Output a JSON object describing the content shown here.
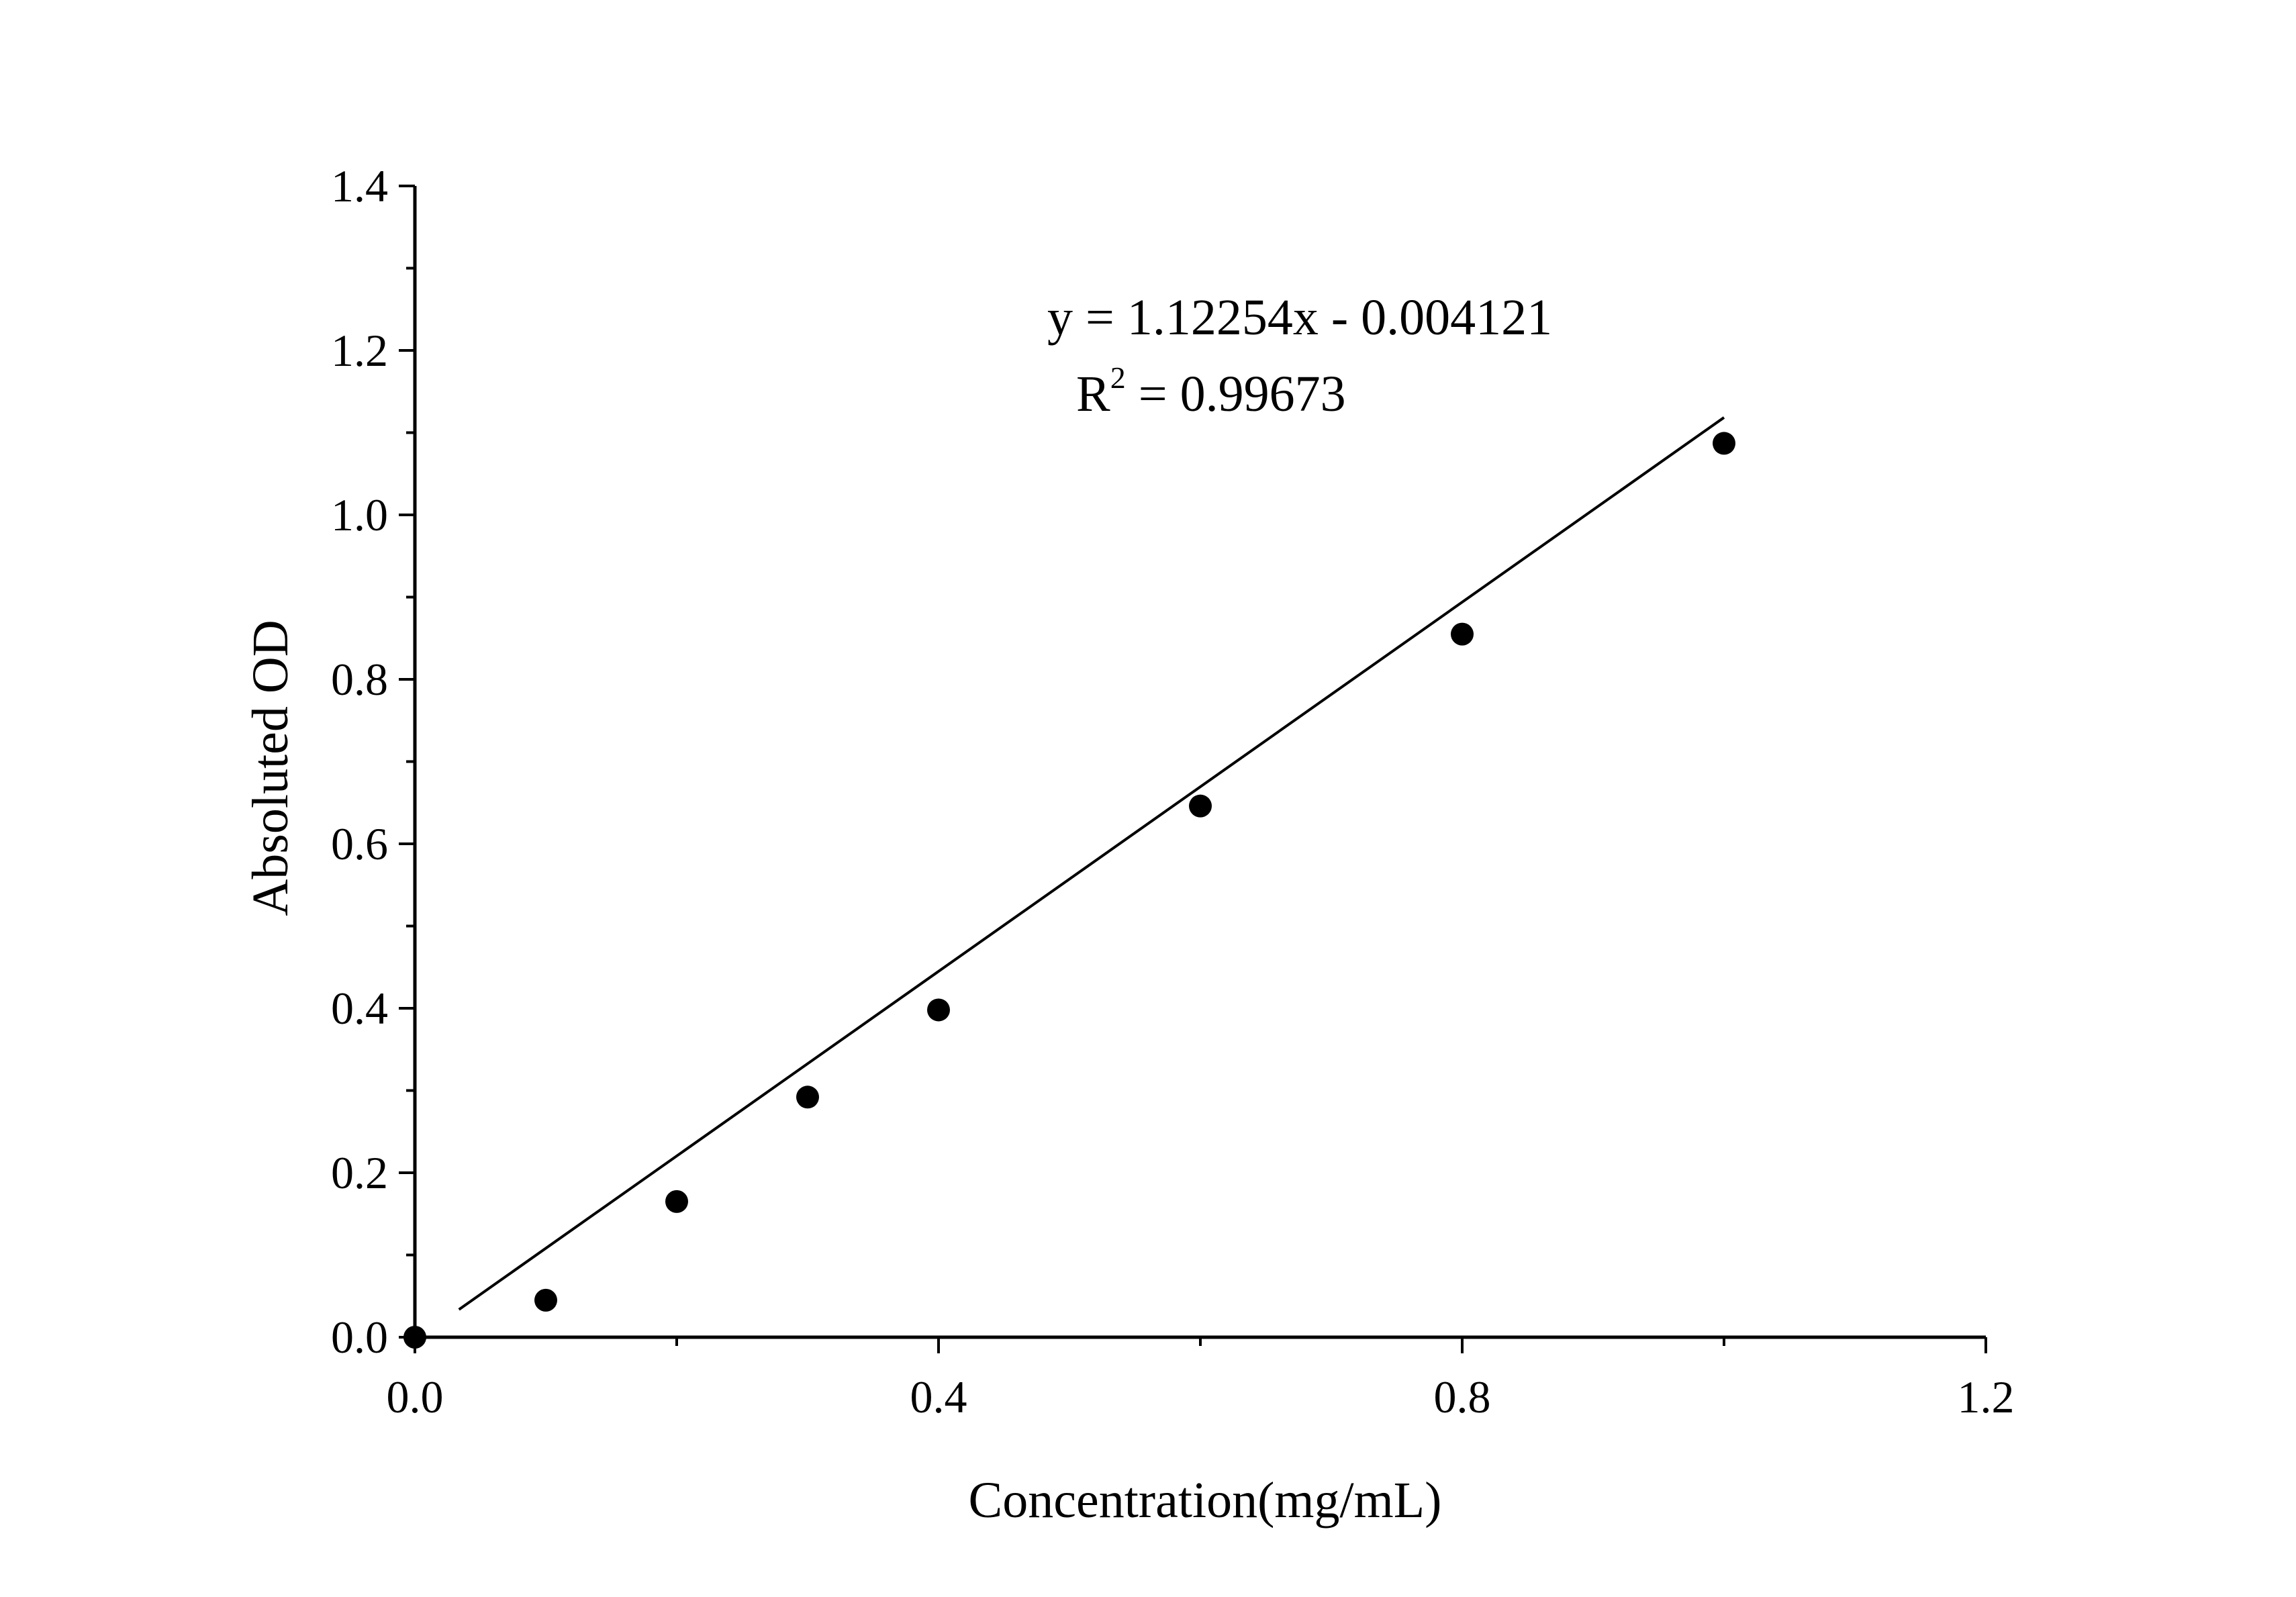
{
  "chart_data": {
    "type": "scatter",
    "title": "",
    "xlabel": "Concentration(mg/mL)",
    "ylabel": "Absoluted OD",
    "xlim": [
      0,
      1.2
    ],
    "ylim": [
      0,
      1.4
    ],
    "x_ticks": [
      0.0,
      0.4,
      0.8,
      1.2
    ],
    "x_tick_labels": [
      "0.0",
      "0.4",
      "0.8",
      "1.2"
    ],
    "x_minor_ticks": [
      0.2,
      0.6,
      1.0
    ],
    "y_ticks": [
      0.0,
      0.2,
      0.4,
      0.6,
      0.8,
      1.0,
      1.2,
      1.4
    ],
    "y_tick_labels": [
      "0.0",
      "0.2",
      "0.4",
      "0.6",
      "0.8",
      "1.0",
      "1.2",
      "1.4"
    ],
    "y_minor_ticks": [
      0.1,
      0.3,
      0.5,
      0.7,
      0.9,
      1.1,
      1.3
    ],
    "grid": false,
    "series": [
      {
        "x": [
          0.0,
          0.1,
          0.2,
          0.3,
          0.4,
          0.6,
          0.8,
          1.0
        ],
        "y": [
          0.0,
          0.045,
          0.165,
          0.292,
          0.398,
          0.646,
          0.855,
          1.087
        ],
        "color": "#000000"
      }
    ],
    "fit": {
      "slope": 1.12254,
      "intercept": -0.004121,
      "equation": "y = 1.12254x - 0.004121",
      "r2_prefix": "R",
      "r2_sup": "2",
      "r2_value": " = 0.99673"
    }
  }
}
